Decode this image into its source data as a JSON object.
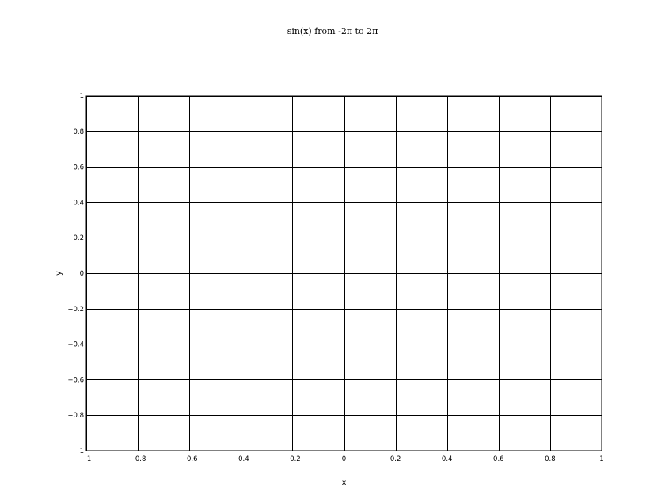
{
  "chart_data": {
    "type": "line",
    "title": "sin(x) from -2π to 2π",
    "xlabel": "x",
    "ylabel": "y",
    "xlim": [
      -1,
      1
    ],
    "ylim": [
      -1,
      1
    ],
    "grid": true,
    "x_ticks": [
      -1,
      -0.8,
      -0.6,
      -0.4,
      -0.2,
      0,
      0.2,
      0.4,
      0.6,
      0.8,
      1
    ],
    "y_ticks": [
      -1,
      -0.8,
      -0.6,
      -0.4,
      -0.2,
      0,
      0.2,
      0.4,
      0.6,
      0.8,
      1
    ],
    "x_tick_labels": [
      "−1",
      "−0.8",
      "−0.6",
      "−0.4",
      "−0.2",
      "0",
      "0.2",
      "0.4",
      "0.6",
      "0.8",
      "1"
    ],
    "y_tick_labels": [
      "−1",
      "−0.8",
      "−0.6",
      "−0.4",
      "−0.2",
      "0",
      "0.2",
      "0.4",
      "0.6",
      "0.8",
      "1"
    ],
    "series": [],
    "colors": {
      "grid": "#000000",
      "frame": "#000000",
      "background": "#ffffff"
    }
  }
}
